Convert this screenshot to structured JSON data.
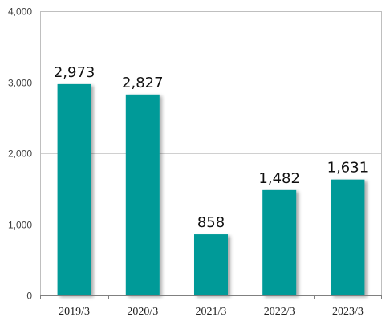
{
  "chart_data": {
    "type": "bar",
    "title": "",
    "xlabel": "",
    "ylabel": "",
    "categories": [
      "2019/3",
      "2020/3",
      "2021/3",
      "2022/3",
      "2023/3"
    ],
    "values": [
      2973,
      2827,
      858,
      1482,
      1631
    ],
    "value_labels": [
      "2,973",
      "2,827",
      "858",
      "1,482",
      "1,631"
    ],
    "ylim": [
      0,
      4000
    ],
    "yticks": [
      0,
      1000,
      2000,
      3000,
      4000
    ],
    "ytick_labels": [
      "0",
      "1,000",
      "2,000",
      "3,000",
      "4,000"
    ],
    "grid": true,
    "legend": "none",
    "bar_color": "#009A98"
  }
}
